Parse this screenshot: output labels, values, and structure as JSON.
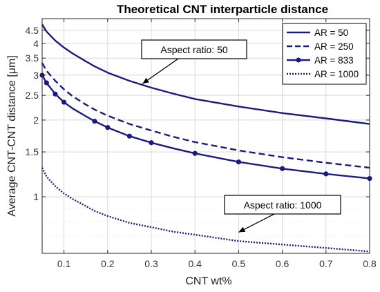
{
  "chart_data": {
    "type": "line",
    "title": "Theoretical CNT interparticle distance",
    "xlabel": "CNT wt%",
    "ylabel": "Average CNT-CNT distance [μm]",
    "xlim": [
      0.05,
      0.8
    ],
    "ylim": [
      0.6,
      5
    ],
    "yscale": "log",
    "grid": true,
    "legend_position": "top-right",
    "x_ticks": [
      "0.1",
      "0.2",
      "0.3",
      "0.4",
      "0.5",
      "0.6",
      "0.7",
      "0.8"
    ],
    "x_tick_values": [
      0.1,
      0.2,
      0.3,
      0.4,
      0.5,
      0.6,
      0.7,
      0.8
    ],
    "y_ticks": [
      "1",
      "1.5",
      "2",
      "2.5",
      "3",
      "3.5",
      "4",
      "4.5"
    ],
    "y_tick_values": [
      1,
      1.5,
      2,
      2.5,
      3,
      3.5,
      4,
      4.5
    ],
    "x": [
      0.05,
      0.06,
      0.08,
      0.1,
      0.12,
      0.15,
      0.17,
      0.2,
      0.25,
      0.3,
      0.35,
      0.4,
      0.5,
      0.6,
      0.7,
      0.8
    ],
    "series": [
      {
        "name": "AR = 50",
        "style": "solid",
        "values": [
          4.75,
          4.45,
          4.1,
          3.85,
          3.65,
          3.4,
          3.25,
          3.07,
          2.85,
          2.68,
          2.54,
          2.42,
          2.26,
          2.13,
          2.03,
          1.93
        ]
      },
      {
        "name": "AR = 250",
        "style": "dashed",
        "values": [
          3.35,
          3.12,
          2.85,
          2.64,
          2.48,
          2.3,
          2.2,
          2.08,
          1.93,
          1.82,
          1.72,
          1.64,
          1.52,
          1.43,
          1.36,
          1.3
        ]
      },
      {
        "name": "AR = 833",
        "style": "solid-dot",
        "values": [
          3.0,
          2.8,
          2.53,
          2.35,
          2.22,
          2.07,
          1.98,
          1.87,
          1.73,
          1.63,
          1.55,
          1.48,
          1.37,
          1.29,
          1.23,
          1.18
        ]
      },
      {
        "name": "AR = 1000",
        "style": "dotted",
        "values": [
          1.3,
          1.2,
          1.1,
          1.03,
          0.98,
          0.92,
          0.88,
          0.84,
          0.79,
          0.76,
          0.73,
          0.71,
          0.67,
          0.65,
          0.63,
          0.61
        ]
      }
    ],
    "markers_x": [
      0.05,
      0.06,
      0.08,
      0.1,
      0.17,
      0.2,
      0.25,
      0.3,
      0.4,
      0.5,
      0.6,
      0.7,
      0.8
    ],
    "annotations": [
      {
        "text": "Aspect ratio: 50",
        "points_to": [
          0.28,
          2.78
        ]
      },
      {
        "text": "Aspect ratio: 1000",
        "points_to": [
          0.5,
          0.726
        ]
      }
    ]
  },
  "colors": {
    "line": "#1a1a80",
    "grid": "#d9d9d9",
    "axis": "#262626"
  }
}
